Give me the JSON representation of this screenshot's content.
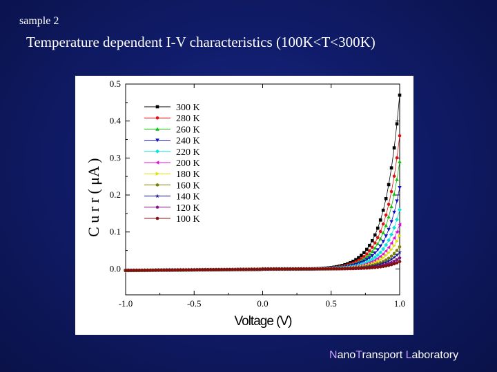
{
  "header": {
    "sample_label": "sample 2",
    "title": "Temperature dependent I-V characteristics (100K<T<300K)"
  },
  "footer": {
    "brand_initial_1": "N",
    "brand_rest_1": "ano",
    "brand_initial_2": "T",
    "brand_rest_2": "ransport ",
    "brand_initial_3": "L",
    "brand_rest_3": "aboratory",
    "accent_color": "#c9a0ff"
  },
  "chart_data": {
    "type": "scatter",
    "xlabel": "Voltage (V)",
    "ylabel_parts": [
      "C",
      "u",
      "r",
      "r",
      "(",
      "μA",
      ")"
    ],
    "xlim": [
      -1.0,
      1.0
    ],
    "ylim": [
      -0.07,
      0.5
    ],
    "xticks": [
      "-1.0",
      "-0.5",
      "0.0",
      "0.5",
      "1.0"
    ],
    "yticks": [
      "0.0",
      "0.1",
      "0.2",
      "0.3",
      "0.4",
      "0.5"
    ],
    "legend_position": "top-left",
    "series": [
      {
        "name": "300 K",
        "color": "#000000",
        "marker": "square",
        "i_at_1V": 0.47
      },
      {
        "name": "280 K",
        "color": "#e01010",
        "marker": "circle",
        "i_at_1V": 0.36
      },
      {
        "name": "260 K",
        "color": "#10c010",
        "marker": "triangle",
        "i_at_1V": 0.29
      },
      {
        "name": "240 K",
        "color": "#1010c0",
        "marker": "tri-down",
        "i_at_1V": 0.22
      },
      {
        "name": "220 K",
        "color": "#10e0e0",
        "marker": "diamond",
        "i_at_1V": 0.16
      },
      {
        "name": "200 K",
        "color": "#e010e0",
        "marker": "tri-left",
        "i_at_1V": 0.12
      },
      {
        "name": "180 K",
        "color": "#e0e010",
        "marker": "tri-right",
        "i_at_1V": 0.09
      },
      {
        "name": "160 K",
        "color": "#808010",
        "marker": "hexagon",
        "i_at_1V": 0.06
      },
      {
        "name": "140 K",
        "color": "#101080",
        "marker": "star",
        "i_at_1V": 0.045
      },
      {
        "name": "120 K",
        "color": "#801080",
        "marker": "pentagon",
        "i_at_1V": 0.03
      },
      {
        "name": "100 K",
        "color": "#801010",
        "marker": "circle",
        "i_at_1V": 0.02
      }
    ]
  }
}
